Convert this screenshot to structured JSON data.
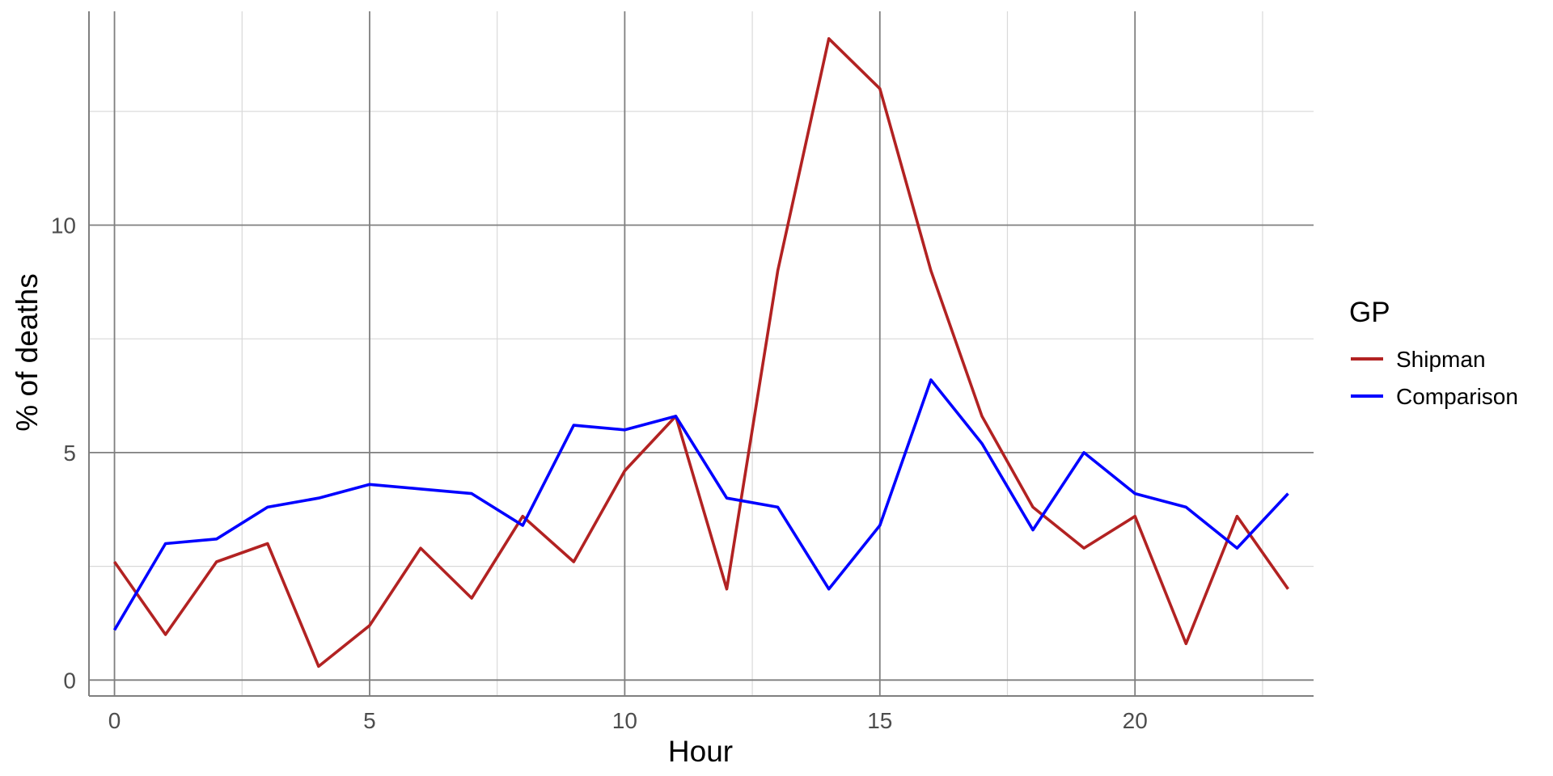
{
  "chart_data": {
    "type": "line",
    "xlabel": "Hour",
    "ylabel": "% of deaths",
    "xlim": [
      -0.5,
      23.5
    ],
    "ylim": [
      -0.35,
      14.7
    ],
    "x_ticks": [
      0,
      5,
      10,
      15,
      20
    ],
    "x_tick_labels": [
      "0",
      "5",
      "10",
      "15",
      "20"
    ],
    "x_minor_ticks": [
      2.5,
      7.5,
      12.5,
      17.5,
      22.5
    ],
    "y_ticks": [
      0,
      5,
      10
    ],
    "y_tick_labels": [
      "0",
      "5",
      "10"
    ],
    "y_minor_ticks": [
      2.5,
      7.5,
      12.5
    ],
    "grid": true,
    "legend": {
      "title": "GP",
      "position": "right"
    },
    "x": [
      0,
      1,
      2,
      3,
      4,
      5,
      6,
      7,
      8,
      9,
      10,
      11,
      12,
      13,
      14,
      15,
      16,
      17,
      18,
      19,
      20,
      21,
      22,
      23
    ],
    "series": [
      {
        "name": "Shipman",
        "color": "#b22222",
        "values": [
          2.6,
          1.0,
          2.6,
          3.0,
          0.3,
          1.2,
          2.9,
          1.8,
          3.6,
          2.6,
          4.6,
          5.8,
          2.0,
          9.0,
          14.1,
          13.0,
          9.0,
          5.8,
          3.8,
          2.9,
          3.6,
          0.8,
          3.6,
          2.0
        ]
      },
      {
        "name": "Comparison",
        "color": "#0000ff",
        "values": [
          1.1,
          3.0,
          3.1,
          3.8,
          4.0,
          4.3,
          4.2,
          4.1,
          3.4,
          5.6,
          5.5,
          5.8,
          4.0,
          3.8,
          2.0,
          3.4,
          6.6,
          5.2,
          3.3,
          5.0,
          4.1,
          3.8,
          2.9,
          4.1
        ]
      }
    ]
  }
}
